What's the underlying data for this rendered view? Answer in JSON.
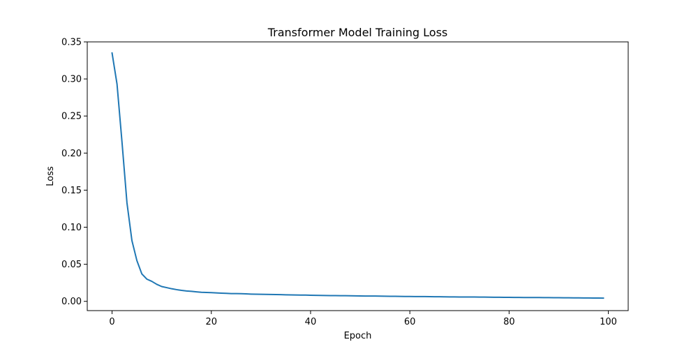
{
  "chart_data": {
    "type": "line",
    "title": "Transformer Model Training Loss",
    "xlabel": "Epoch",
    "ylabel": "Loss",
    "xlim": [
      -5,
      104
    ],
    "ylim": [
      -0.0125,
      0.35
    ],
    "xticks": [
      0,
      20,
      40,
      60,
      80,
      100
    ],
    "xtick_labels": [
      "0",
      "20",
      "40",
      "60",
      "80",
      "100"
    ],
    "yticks": [
      0.0,
      0.05,
      0.1,
      0.15,
      0.2,
      0.25,
      0.3,
      0.35
    ],
    "ytick_labels": [
      "0.00",
      "0.05",
      "0.10",
      "0.15",
      "0.20",
      "0.25",
      "0.30",
      "0.35"
    ],
    "grid": false,
    "series": [
      {
        "color": "#1f77b4",
        "x": [
          0,
          1,
          2,
          3,
          4,
          5,
          6,
          7,
          8,
          9,
          10,
          11,
          12,
          13,
          14,
          15,
          16,
          17,
          18,
          19,
          20,
          21,
          22,
          23,
          24,
          25,
          26,
          27,
          28,
          29,
          30,
          31,
          32,
          33,
          34,
          35,
          36,
          37,
          38,
          39,
          40,
          41,
          42,
          43,
          44,
          45,
          46,
          47,
          48,
          49,
          50,
          51,
          52,
          53,
          54,
          55,
          56,
          57,
          58,
          59,
          60,
          61,
          62,
          63,
          64,
          65,
          66,
          67,
          68,
          69,
          70,
          71,
          72,
          73,
          74,
          75,
          76,
          77,
          78,
          79,
          80,
          81,
          82,
          83,
          84,
          85,
          86,
          87,
          88,
          89,
          90,
          91,
          92,
          93,
          94,
          95,
          96,
          97,
          98,
          99
        ],
        "y": [
          0.335,
          0.293,
          0.215,
          0.133,
          0.082,
          0.055,
          0.037,
          0.03,
          0.027,
          0.023,
          0.02,
          0.0185,
          0.017,
          0.0158,
          0.0148,
          0.014,
          0.0135,
          0.0128,
          0.0122,
          0.012,
          0.0118,
          0.0114,
          0.0111,
          0.0108,
          0.0105,
          0.0104,
          0.0103,
          0.0101,
          0.0098,
          0.0096,
          0.0095,
          0.0094,
          0.0093,
          0.0092,
          0.009,
          0.0088,
          0.0087,
          0.0086,
          0.0085,
          0.0084,
          0.0082,
          0.0081,
          0.008,
          0.0079,
          0.0078,
          0.0077,
          0.0076,
          0.0076,
          0.0075,
          0.0074,
          0.0073,
          0.0072,
          0.0071,
          0.0071,
          0.007,
          0.0069,
          0.0068,
          0.0068,
          0.0067,
          0.0066,
          0.0066,
          0.0065,
          0.0064,
          0.0064,
          0.0063,
          0.0062,
          0.0062,
          0.0061,
          0.006,
          0.006,
          0.0059,
          0.0059,
          0.0058,
          0.0058,
          0.0057,
          0.0057,
          0.0056,
          0.0055,
          0.0055,
          0.0054,
          0.0054,
          0.0053,
          0.0053,
          0.0052,
          0.0052,
          0.0051,
          0.0051,
          0.005,
          0.005,
          0.0049,
          0.0049,
          0.0048,
          0.0048,
          0.0047,
          0.0047,
          0.0046,
          0.0046,
          0.0045,
          0.0045,
          0.0044
        ]
      }
    ]
  }
}
